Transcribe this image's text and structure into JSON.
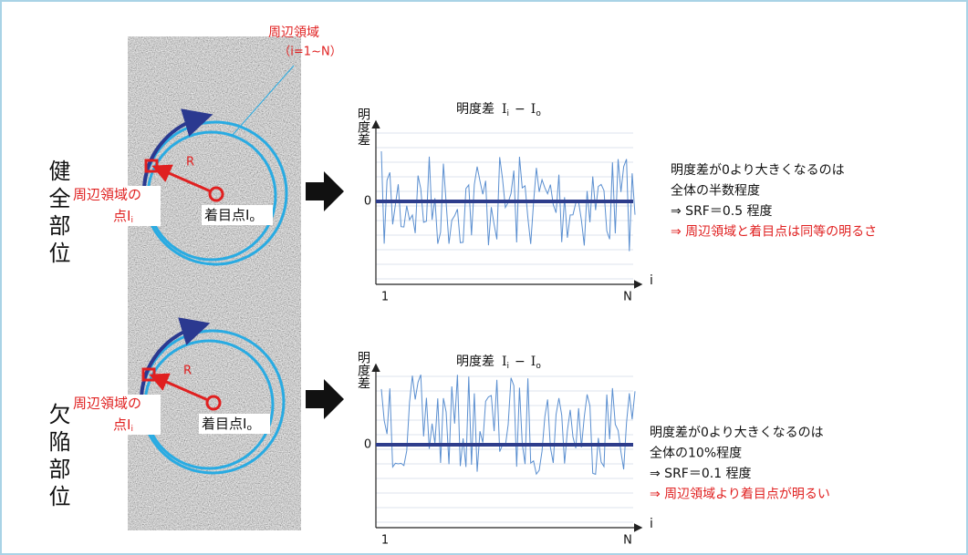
{
  "top_label": "周辺領域",
  "top_label_range": "（i=1~N）",
  "sections": [
    {
      "heading": "健全部位",
      "point_label_line1": "周辺領域の",
      "point_label_line2": "点I",
      "point_label_sub": "i",
      "radius_label": "R",
      "focus_label": "着目点I",
      "focus_label_sub": "o",
      "chart": {
        "title": "明度差",
        "title_var1": "I",
        "title_sub1": "i",
        "title_minus": "−",
        "title_var2": "I",
        "title_sub2": "o",
        "y_label": "明度差",
        "zero_label": "0",
        "x_start": "1",
        "x_end": "N",
        "x_axis": "i"
      },
      "notes": [
        "明度差が0より大きくなるのは",
        "全体の半数程度",
        "⇒  SRF＝0.5  程度",
        "⇒  周辺領域と着目点は同等の明るさ"
      ]
    },
    {
      "heading": "欠陥部位",
      "point_label_line1": "周辺領域の",
      "point_label_line2": "点I",
      "point_label_sub": "i",
      "radius_label": "R",
      "focus_label": "着目点I",
      "focus_label_sub": "o",
      "chart": {
        "title": "明度差",
        "title_var1": "I",
        "title_sub1": "i",
        "title_minus": "−",
        "title_var2": "I",
        "title_sub2": "o",
        "y_label": "明度差",
        "zero_label": "0",
        "x_start": "1",
        "x_end": "N",
        "x_axis": "i"
      },
      "notes": [
        "明度差が0より大きくなるのは",
        "全体の10%程度",
        "⇒  SRF＝0.1  程度",
        "⇒  周辺領域より着目点が明るい"
      ]
    }
  ]
}
